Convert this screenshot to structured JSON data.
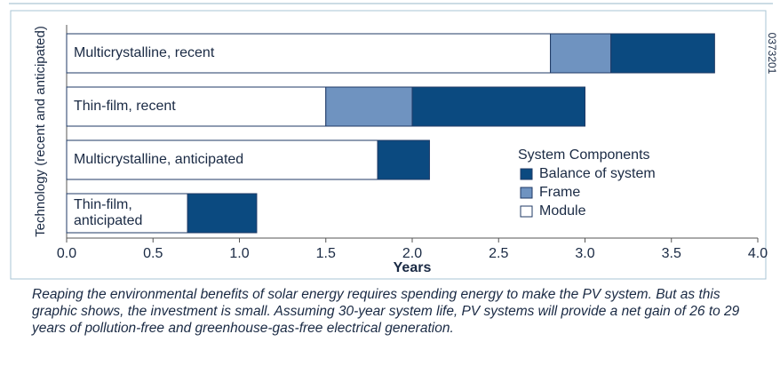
{
  "chart_data": {
    "type": "stacked-barh",
    "ylabel": "Technology (recent and anticipated)",
    "xlabel": "Years",
    "annotation": "0373201",
    "categories": [
      "Multicrystalline, recent",
      "Thin-film, recent",
      "Multicrystalline, anticipated",
      "Thin-film, anticipated"
    ],
    "series": [
      {
        "name": "Module",
        "color": "#ffffff",
        "values": [
          2.8,
          1.5,
          1.8,
          0.7
        ]
      },
      {
        "name": "Frame",
        "color": "#6f93c0",
        "values": [
          0.35,
          0.5,
          0,
          0
        ]
      },
      {
        "name": "Balance of system",
        "color": "#0b4a80",
        "values": [
          0.6,
          1.0,
          0.3,
          0.4
        ]
      }
    ],
    "legend_title": "System Components",
    "legend": "right",
    "xlim": [
      0,
      4
    ],
    "xticks": [
      {
        "value": 0,
        "label": "0.0"
      },
      0.5,
      {
        "value": 1,
        "label": "1.0"
      },
      1.5,
      {
        "value": 2,
        "label": "2.0"
      },
      2.5,
      {
        "value": 3,
        "label": "3.0"
      },
      3.5,
      {
        "value": 4,
        "label": "4.0"
      }
    ],
    "caption": "Reaping the environmental benefits of solar energy requires spending energy to make the PV system. But as this graphic shows, the investment is small. Assuming 30-year system life, PV systems will provide a net gain of 26 to 29 years of pollu­tion-free and greenhouse-gas-free electrical generation."
  }
}
